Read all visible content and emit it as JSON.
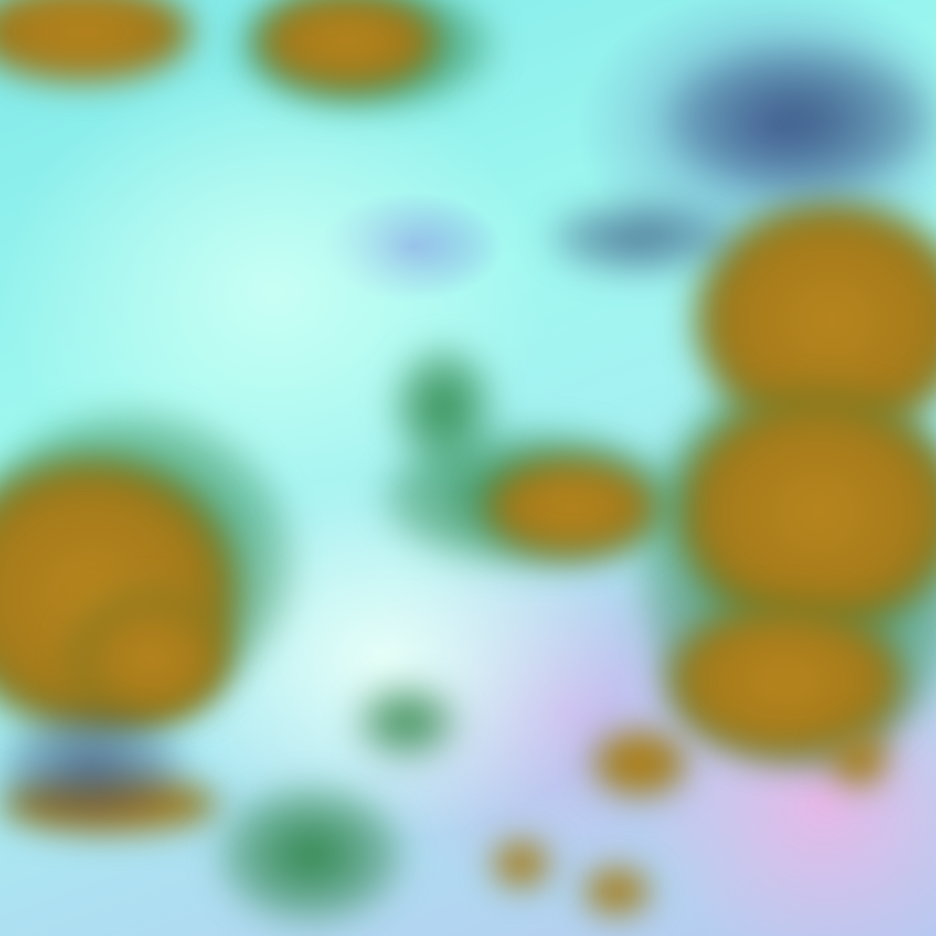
{
  "image": {
    "kind": "false-color satellite cloud imagery",
    "colors": {
      "clear_sky": "#9ff8f0",
      "thick_cloud": "#b8861e",
      "cloud_edge": "#1e7832",
      "thin_cloud": "#c9b8ee"
    }
  }
}
